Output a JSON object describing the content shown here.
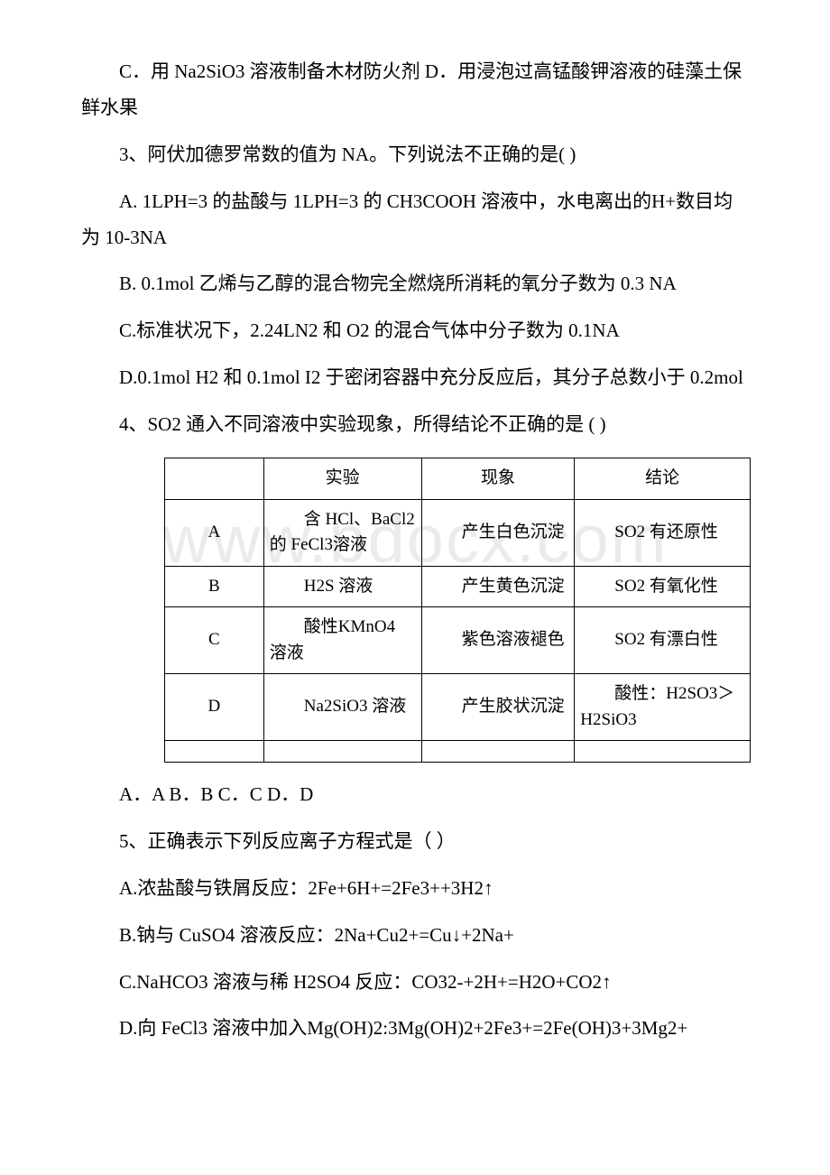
{
  "watermark": "www.bdocx.com",
  "paragraphs": {
    "p1": "C．用 Na2SiO3 溶液制备木材防火剂   D．用浸泡过高锰酸钾溶液的硅藻土保鲜水果",
    "p2": "3、阿伏加德罗常数的值为 NA。下列说法不正确的是( )",
    "p3": "A. 1LPH=3 的盐酸与 1LPH=3 的 CH3COOH 溶液中，水电离出的H+数目均为 10-3NA",
    "p4": "B. 0.1mol 乙烯与乙醇的混合物完全燃烧所消耗的氧分子数为 0.3 NA",
    "p5": "C.标准状况下，2.24LN2 和 O2 的混合气体中分子数为 0.1NA",
    "p6": "D.0.1mol H2 和 0.1mol I2 于密闭容器中充分反应后，其分子总数小于 0.2mol",
    "p7": "4、SO2 通入不同溶液中实验现象，所得结论不正确的是 ( )",
    "p8": "A．A B．B C．C D．D",
    "p9": "5、正确表示下列反应离子方程式是（ ）",
    "p10": "A.浓盐酸与铁屑反应：2Fe+6H+=2Fe3++3H2↑",
    "p11": "B.钠与 CuSO4 溶液反应：2Na+Cu2+=Cu↓+2Na+",
    "p12": "C.NaHCO3 溶液与稀 H2SO4 反应：CO32-+2H+=H2O+CO2↑",
    "p13": "D.向 FeCl3 溶液中加入Mg(OH)2:3Mg(OH)2+2Fe3+=2Fe(OH)3+3Mg2+"
  },
  "table": {
    "headers": {
      "blank": "",
      "exp": "实验",
      "phen": "现象",
      "conc": "结论"
    },
    "rows": [
      {
        "label": "A",
        "experiment": "含 HCl、BaCl2 的 FeCl3溶液",
        "phenomenon": "产生白色沉淀",
        "conclusion": "SO2 有还原性"
      },
      {
        "label": "B",
        "experiment": "H2S 溶液",
        "phenomenon": "产生黄色沉淀",
        "conclusion": "SO2 有氧化性"
      },
      {
        "label": "C",
        "experiment": "酸性KMnO4 溶液",
        "phenomenon": "紫色溶液褪色",
        "conclusion": "SO2 有漂白性"
      },
      {
        "label": "D",
        "experiment": "Na2SiO3 溶液",
        "phenomenon": "产生胶状沉淀",
        "conclusion": "酸性：H2SO3＞H2SiO3"
      }
    ]
  }
}
